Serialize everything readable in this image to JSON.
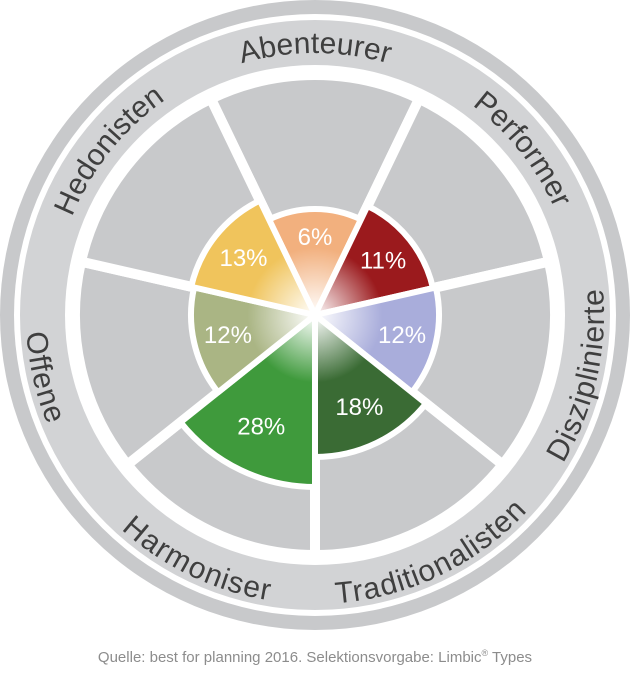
{
  "chart_data": {
    "type": "pie",
    "segments": [
      {
        "label": "Abenteurer",
        "value": 6,
        "value_label": "6%",
        "color": "#f2b07e"
      },
      {
        "label": "Performer",
        "value": 11,
        "value_label": "11%",
        "color": "#9b1a1d"
      },
      {
        "label": "Disziplinierte",
        "value": 12,
        "value_label": "12%",
        "color": "#a9addb"
      },
      {
        "label": "Traditionalisten",
        "value": 18,
        "value_label": "18%",
        "color": "#3a6b34"
      },
      {
        "label": "Harmoniser",
        "value": 28,
        "value_label": "28%",
        "color": "#3f9a3c"
      },
      {
        "label": "Offene",
        "value": 12,
        "value_label": "12%",
        "color": "#aab584"
      },
      {
        "label": "Hedonisten",
        "value": 13,
        "value_label": "13%",
        "color": "#f0c45c"
      }
    ]
  },
  "colors": {
    "ring": "#c8c9cb",
    "outer_band": "#d2d3d5",
    "separator": "#ffffff",
    "label_text": "#3f3f3f",
    "value_text": "#ffffff"
  },
  "source": {
    "text": "Quelle: best for planning 2016. Selektionsvorgabe: Limbic",
    "superscript": "®",
    "suffix": " Types"
  }
}
